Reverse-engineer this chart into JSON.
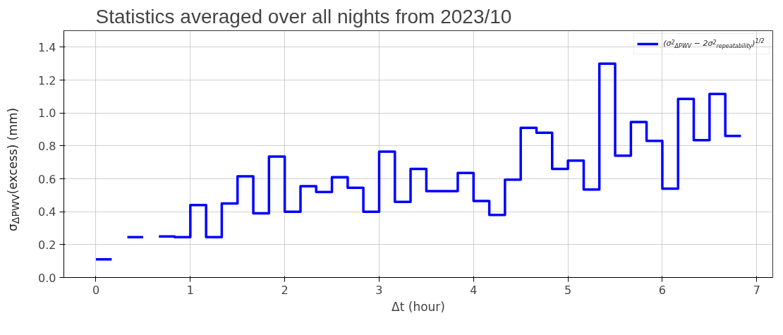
{
  "chart_data": {
    "type": "step",
    "title": "Statistics averaged over all nights from 2023/10",
    "xlabel": "Δt (hour)",
    "ylabel": "σ$_{ΔPWV}$(excess) (mm)",
    "x": [
      0,
      0.167,
      0.333,
      0.5,
      0.667,
      0.833,
      1.0,
      1.167,
      1.333,
      1.5,
      1.667,
      1.833,
      2.0,
      2.167,
      2.333,
      2.5,
      2.667,
      2.833,
      3.0,
      3.167,
      3.333,
      3.5,
      3.667,
      3.833,
      4.0,
      4.167,
      4.333,
      4.5,
      4.667,
      4.833,
      5.0,
      5.167,
      5.333,
      5.5,
      5.667,
      5.833,
      6.0,
      6.167,
      6.333,
      6.5,
      6.667,
      6.833
    ],
    "series": [
      {
        "name": "(σ$^{2}$$_{ΔPWV}$ − 2σ$^{2}$$_{repeatability}$)$^{1/2}$",
        "color": "#0000ff",
        "values": [
          0.11,
          null,
          0.245,
          null,
          0.25,
          0.245,
          0.44,
          0.245,
          0.45,
          0.615,
          0.39,
          0.735,
          0.4,
          0.555,
          0.52,
          0.61,
          0.545,
          0.4,
          0.765,
          0.46,
          0.66,
          0.525,
          0.525,
          0.635,
          0.465,
          0.38,
          0.595,
          0.91,
          0.88,
          0.66,
          0.71,
          0.535,
          1.3,
          0.74,
          0.945,
          0.83,
          0.54,
          1.085,
          0.835,
          1.115,
          0.86,
          0.86
        ]
      }
    ],
    "xlim": [
      -0.34,
      7.17
    ],
    "ylim": [
      0,
      1.5
    ],
    "xticks": [
      0,
      1,
      2,
      3,
      4,
      5,
      6,
      7
    ],
    "yticks": [
      {
        "value": 0,
        "label": "0.0"
      },
      0.2,
      0.4,
      0.6,
      0.8,
      {
        "value": 1,
        "label": "1.0"
      },
      1.2,
      1.4
    ],
    "grid": true,
    "legend": "top right",
    "line_style": "solid"
  }
}
